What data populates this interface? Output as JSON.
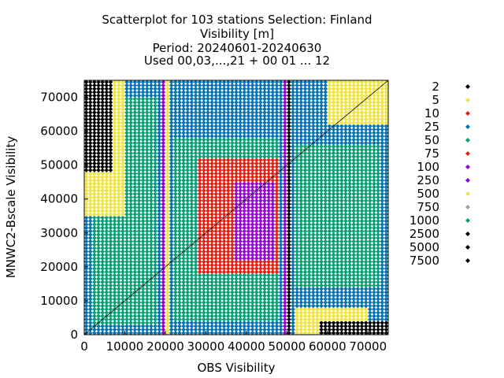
{
  "chart_data": {
    "type": "scatter",
    "title_lines": [
      "Scatterplot for  103 stations Selection: Finland",
      "Visibility [m]",
      "Period: 20240601-20240630",
      "Used 00,03,...,21 + 00 01 ... 12"
    ],
    "xlabel": "OBS Visibility",
    "ylabel": "MNWC2-Bscale Visibility",
    "xlim": [
      0,
      75000
    ],
    "ylim": [
      0,
      75000
    ],
    "x_ticks": [
      0,
      10000,
      20000,
      30000,
      40000,
      50000,
      60000,
      70000
    ],
    "x_tick_labels": [
      "0",
      "10000",
      "20000",
      "30000",
      "40000",
      "50000",
      "60000",
      "70000"
    ],
    "y_ticks": [
      0,
      10000,
      20000,
      30000,
      40000,
      50000,
      60000,
      70000
    ],
    "y_tick_labels": [
      "0",
      "10000",
      "20000",
      "30000",
      "40000",
      "50000",
      "60000",
      "70000"
    ],
    "grid": false,
    "diagonal_line": true,
    "legend_position": "right",
    "legend": [
      {
        "label": "2",
        "color": "#000000"
      },
      {
        "label": "5",
        "color": "#f0e442"
      },
      {
        "label": "10",
        "color": "#e51e10"
      },
      {
        "label": "25",
        "color": "#0072b2"
      },
      {
        "label": "50",
        "color": "#009e73"
      },
      {
        "label": "75",
        "color": "#e51e10"
      },
      {
        "label": "100",
        "color": "#9400d3"
      },
      {
        "label": "250",
        "color": "#9400d3"
      },
      {
        "label": "500",
        "color": "#f0e442"
      },
      {
        "label": "750",
        "color": "#a0a0a0"
      },
      {
        "label": "1000",
        "color": "#009e73"
      },
      {
        "label": "2500",
        "color": "#000000"
      },
      {
        "label": "5000",
        "color": "#000000"
      },
      {
        "label": "7500",
        "color": "#000000"
      }
    ],
    "regions": [
      {
        "x": [
          0,
          75000
        ],
        "y": [
          0,
          75000
        ],
        "count_class": "25"
      },
      {
        "x": [
          2000,
          18000
        ],
        "y": [
          3000,
          70000
        ],
        "count_class": "50"
      },
      {
        "x": [
          22000,
          48000
        ],
        "y": [
          4000,
          58000
        ],
        "count_class": "50"
      },
      {
        "x": [
          28000,
          48000
        ],
        "y": [
          18000,
          52000
        ],
        "count_class": "10"
      },
      {
        "x": [
          37000,
          47000
        ],
        "y": [
          22000,
          45000
        ],
        "count_class": "100"
      },
      {
        "x": [
          52000,
          73000
        ],
        "y": [
          14000,
          56000
        ],
        "count_class": "50"
      },
      {
        "x": [
          0,
          10000
        ],
        "y": [
          35000,
          75000
        ],
        "count_class": "5"
      },
      {
        "x": [
          0,
          7000
        ],
        "y": [
          48000,
          75000
        ],
        "count_class": "2"
      },
      {
        "x": [
          60000,
          75000
        ],
        "y": [
          62000,
          75000
        ],
        "count_class": "5"
      },
      {
        "x": [
          52000,
          70000
        ],
        "y": [
          0,
          8000
        ],
        "count_class": "5"
      },
      {
        "x": [
          58000,
          75000
        ],
        "y": [
          0,
          4000
        ],
        "count_class": "2"
      },
      {
        "x": [
          18600,
          19600
        ],
        "y": [
          0,
          75000
        ],
        "count_class": "100"
      },
      {
        "x": [
          19600,
          20600
        ],
        "y": [
          0,
          75000
        ],
        "count_class": "5"
      },
      {
        "x": [
          48800,
          49800
        ],
        "y": [
          0,
          75000
        ],
        "count_class": "100"
      },
      {
        "x": [
          49800,
          50600
        ],
        "y": [
          0,
          75000
        ],
        "count_class": "2"
      }
    ]
  }
}
